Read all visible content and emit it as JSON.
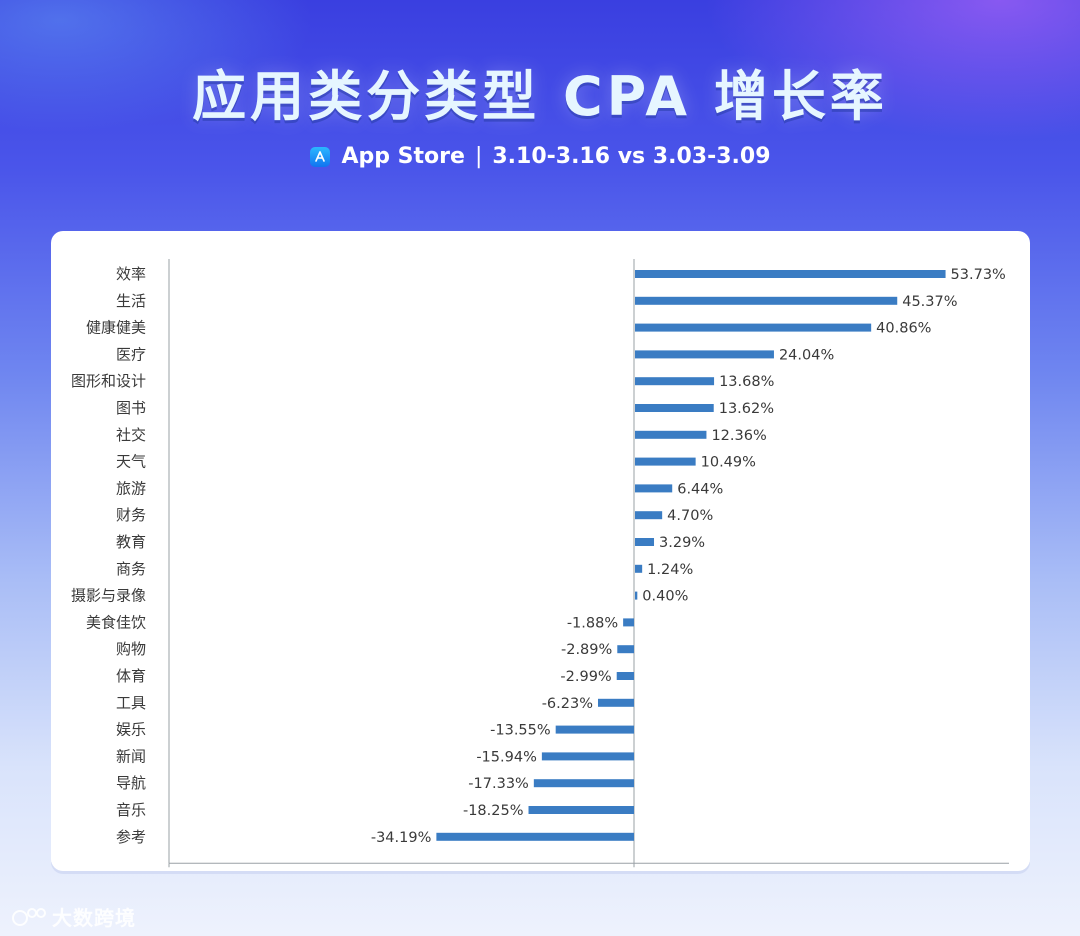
{
  "title": "应用类分类型 CPA 增长率",
  "subtitle": {
    "store": "App Store",
    "separator": "|",
    "period": "3.10-3.16 vs 3.03-3.09"
  },
  "watermark": "大数跨境",
  "colors": {
    "bar": "#3a7cc3",
    "axis": "#9aa0a6",
    "label": "#3a3a3a"
  },
  "chart_data": {
    "type": "bar",
    "orientation": "horizontal",
    "categories": [
      "效率",
      "生活",
      "健康健美",
      "医疗",
      "图形和设计",
      "图书",
      "社交",
      "天气",
      "旅游",
      "财务",
      "教育",
      "商务",
      "摄影与录像",
      "美食佳饮",
      "购物",
      "体育",
      "工具",
      "娱乐",
      "新闻",
      "导航",
      "音乐",
      "参考"
    ],
    "values": [
      53.73,
      45.37,
      40.86,
      24.04,
      13.68,
      13.62,
      12.36,
      10.49,
      6.44,
      4.7,
      3.29,
      1.24,
      0.4,
      -1.88,
      -2.89,
      -2.99,
      -6.23,
      -13.55,
      -15.94,
      -17.33,
      -18.25,
      -34.19
    ],
    "data_labels": [
      "53.73%",
      "45.37%",
      "40.86%",
      "24.04%",
      "13.68%",
      "13.62%",
      "12.36%",
      "10.49%",
      "6.44%",
      "4.70%",
      "3.29%",
      "1.24%",
      "0.40%",
      "-1.88%",
      "-2.89%",
      "-2.99%",
      "-6.23%",
      "-13.55%",
      "-15.94%",
      "-17.33%",
      "-18.25%",
      "-34.19%"
    ],
    "xlim": [
      -80,
      60
    ],
    "grid": false,
    "legend": "none"
  }
}
